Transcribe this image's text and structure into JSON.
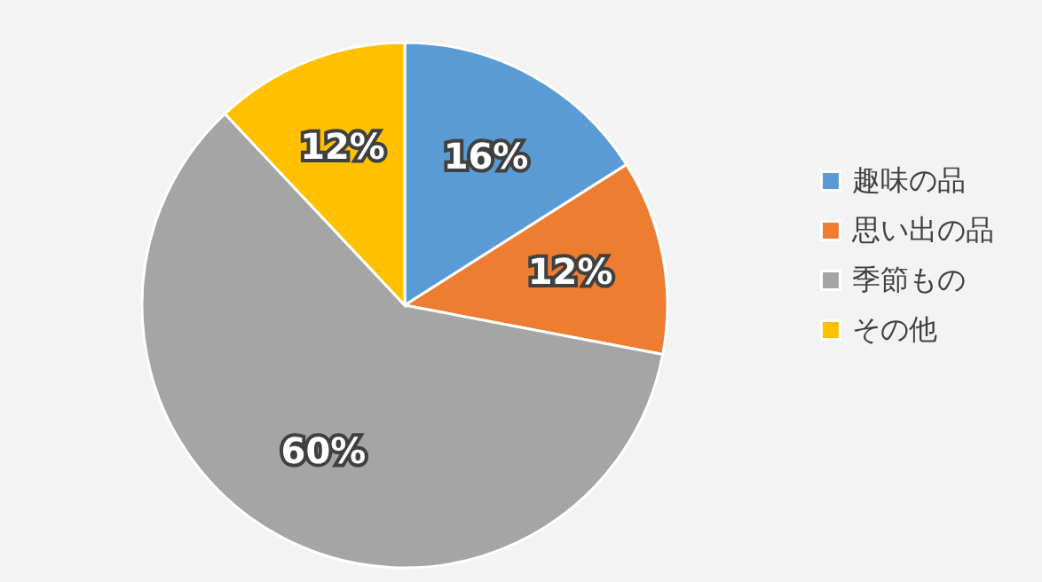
{
  "chart_data": {
    "type": "pie",
    "categories": [
      "趣味の品",
      "思い出の品",
      "季節もの",
      "その他"
    ],
    "values": [
      16,
      12,
      60,
      12
    ],
    "colors": [
      "#5b9bd5",
      "#ed7d31",
      "#a5a5a5",
      "#ffc000"
    ],
    "value_labels": [
      "16%",
      "12%",
      "60%",
      "12%"
    ],
    "legend": "right"
  }
}
